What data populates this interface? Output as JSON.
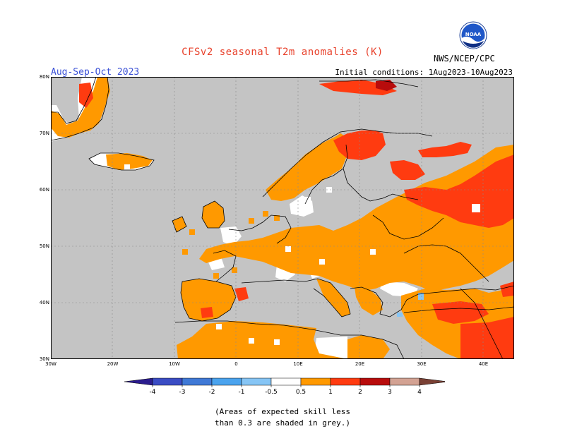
{
  "title": "CFSv2 seasonal T2m anomalies (K)",
  "season": "Aug-Sep-Oct 2023",
  "initial_conditions": "Initial conditions: 1Aug2023-10Aug2023",
  "agency": "NWS/NCEP/CPC",
  "logo_text": "NOAA",
  "map": {
    "lon_labels": [
      "30W",
      "20W",
      "10W",
      "0",
      "10E",
      "20E",
      "30E",
      "40E"
    ],
    "lat_labels": [
      "80N",
      "70N",
      "60N",
      "50N",
      "40N",
      "30N"
    ],
    "land_color": "#c4c4c4",
    "water_color": "#ffffff"
  },
  "legend": {
    "tick_labels": [
      "-4",
      "-3",
      "-2",
      "-1",
      "-0.5",
      "0.5",
      "1",
      "2",
      "3",
      "4"
    ],
    "colors": [
      "#2b1c8e",
      "#3a4cc4",
      "#3f79d6",
      "#4aa3ee",
      "#86c5f5",
      "#ffffff",
      "#ff9900",
      "#ff3b10",
      "#b80c0c",
      "#d3a293",
      "#7a4034"
    ]
  },
  "note": {
    "line1": "(Areas of expected skill less",
    "line2": "than 0.3 are shaded in grey.)"
  }
}
